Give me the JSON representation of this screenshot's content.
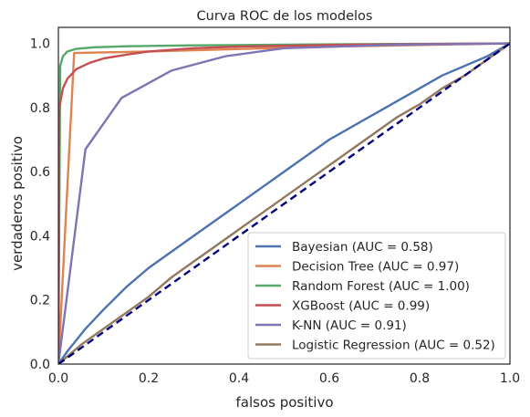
{
  "chart_data": {
    "type": "line",
    "title": "Curva ROC de los modelos",
    "xlabel": "falsos positivo",
    "ylabel": "verdaderos positivo",
    "xlim": [
      0,
      1
    ],
    "ylim": [
      0,
      1.05
    ],
    "xticks": [
      0,
      0.2,
      0.4,
      0.6,
      0.8,
      1.0
    ],
    "xtick_labels": [
      "0.0",
      "0.2",
      "0.4",
      "0.6",
      "0.8",
      "1.0"
    ],
    "yticks": [
      0,
      0.2,
      0.4,
      0.6,
      0.8,
      1.0
    ],
    "ytick_labels": [
      "0.0",
      "0.2",
      "0.4",
      "0.6",
      "0.8",
      "1.0"
    ],
    "grid": false,
    "legend_position": "lower-right",
    "series": [
      {
        "name": "Bayesian (AUC = 0.58)",
        "color": "#4c72b0",
        "x": [
          0,
          0.02,
          0.06,
          0.1,
          0.15,
          0.2,
          0.3,
          0.4,
          0.5,
          0.6,
          0.7,
          0.8,
          0.85,
          0.9,
          0.95,
          1.0
        ],
        "y": [
          0,
          0.04,
          0.11,
          0.17,
          0.24,
          0.3,
          0.4,
          0.5,
          0.6,
          0.7,
          0.78,
          0.86,
          0.9,
          0.93,
          0.96,
          1.0
        ]
      },
      {
        "name": "Decision Tree (AUC = 0.97)",
        "color": "#dd8452",
        "x": [
          0,
          0.035,
          0.2,
          0.6,
          1.0
        ],
        "y": [
          0,
          0.97,
          0.975,
          0.99,
          1.0
        ]
      },
      {
        "name": "Random Forest (AUC = 1.00)",
        "color": "#55a868",
        "x": [
          0,
          0.004,
          0.01,
          0.02,
          0.04,
          0.08,
          0.15,
          0.3,
          0.5,
          0.7,
          1.0
        ],
        "y": [
          0,
          0.93,
          0.96,
          0.975,
          0.983,
          0.988,
          0.991,
          0.994,
          0.996,
          0.998,
          1.0
        ]
      },
      {
        "name": "XGBoost (AUC = 0.99)",
        "color": "#c44e52",
        "x": [
          0,
          0.002,
          0.01,
          0.02,
          0.04,
          0.07,
          0.1,
          0.15,
          0.2,
          0.3,
          0.4,
          0.6,
          0.8,
          1.0
        ],
        "y": [
          0,
          0.8,
          0.86,
          0.89,
          0.92,
          0.94,
          0.953,
          0.965,
          0.975,
          0.985,
          0.99,
          0.995,
          0.998,
          1.0
        ]
      },
      {
        "name": "K-NN (AUC = 0.91)",
        "color": "#8172b3",
        "x": [
          0,
          0.06,
          0.14,
          0.25,
          0.37,
          0.5,
          0.75,
          1.0
        ],
        "y": [
          0,
          0.67,
          0.83,
          0.915,
          0.96,
          0.985,
          0.996,
          1.0
        ]
      },
      {
        "name": "Logistic Regression (AUC = 0.52)",
        "color": "#937860",
        "x": [
          0,
          0.05,
          0.1,
          0.15,
          0.2,
          0.25,
          0.3,
          0.35,
          0.4,
          0.45,
          0.5,
          0.55,
          0.6,
          0.65,
          0.7,
          0.75,
          0.8,
          0.85,
          0.9,
          0.95,
          1.0
        ],
        "y": [
          0,
          0.06,
          0.11,
          0.16,
          0.21,
          0.27,
          0.32,
          0.37,
          0.42,
          0.47,
          0.52,
          0.57,
          0.62,
          0.67,
          0.72,
          0.77,
          0.81,
          0.86,
          0.9,
          0.95,
          1.0
        ]
      }
    ],
    "reference_line": {
      "x": [
        0,
        1
      ],
      "y": [
        0,
        1
      ],
      "color": "#000080",
      "style": "dashed"
    }
  }
}
